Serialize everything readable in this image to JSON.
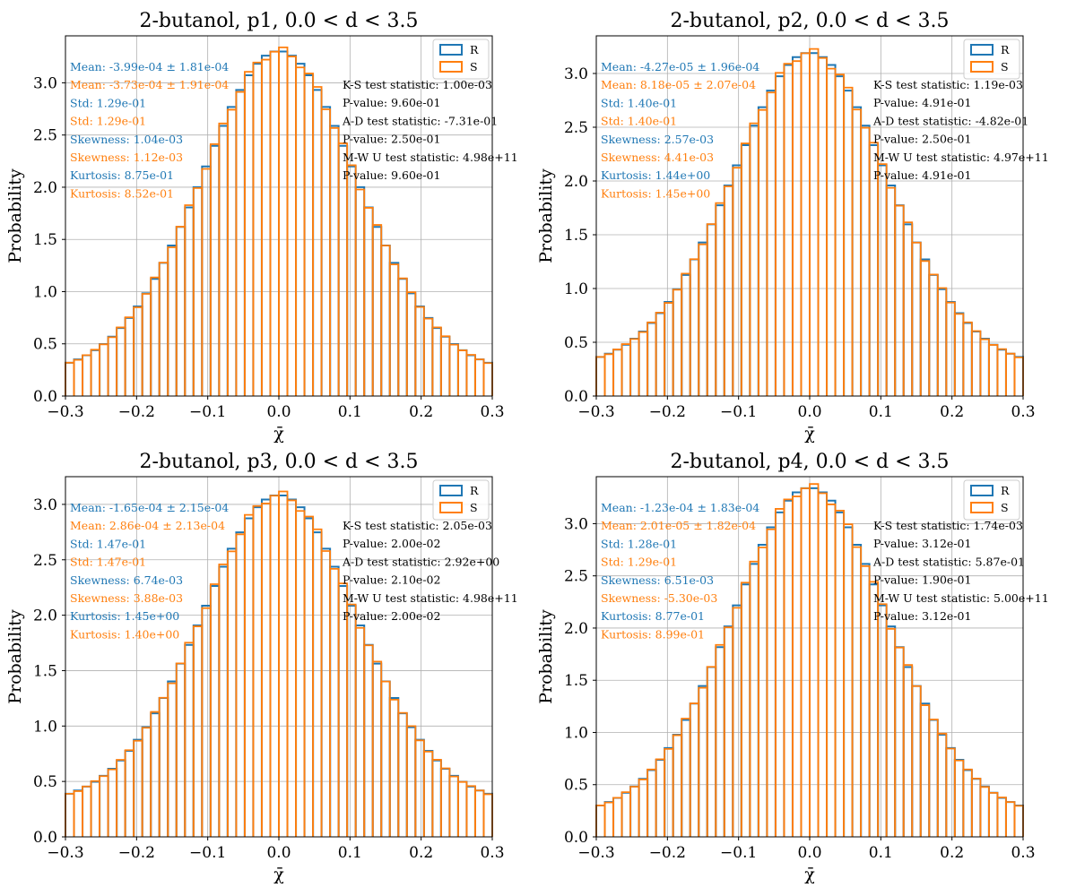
{
  "colors": {
    "R": "#1f77b4",
    "S": "#ff7f0e",
    "grid": "#b0b0b0",
    "text": "#000000"
  },
  "chart_data": [
    {
      "type": "histogram",
      "title": "2-butanol, p1, 0.0 < d < 3.5",
      "xlabel": "χ̄",
      "ylabel": "Probability",
      "xlim": [
        -0.3,
        0.3
      ],
      "ylim": [
        0.0,
        3.45
      ],
      "xticks": [
        "−0.3",
        "−0.2",
        "−0.1",
        "0.0",
        "0.1",
        "0.2",
        "0.3"
      ],
      "yticks": [
        "0.0",
        "0.5",
        "1.0",
        "1.5",
        "2.0",
        "2.5",
        "3.0"
      ],
      "grid": true,
      "legend_position": "top-right",
      "peak": 3.3,
      "tail": 0.22,
      "series": [
        {
          "name": "R",
          "color": "#1f77b4"
        },
        {
          "name": "S",
          "color": "#ff7f0e"
        }
      ],
      "stats_left": [
        {
          "text": "Mean: -3.99e-04 ± 1.81e-04",
          "series": "R"
        },
        {
          "text": "Mean: -3.73e-04 ± 1.91e-04",
          "series": "S"
        },
        {
          "text": "Std: 1.29e-01",
          "series": "R"
        },
        {
          "text": "Std: 1.29e-01",
          "series": "S"
        },
        {
          "text": "Skewness: 1.04e-03",
          "series": "R"
        },
        {
          "text": "Skewness: 1.12e-03",
          "series": "S"
        },
        {
          "text": "Kurtosis: 8.75e-01",
          "series": "R"
        },
        {
          "text": "Kurtosis: 8.52e-01",
          "series": "S"
        }
      ],
      "stats_right": [
        "K-S test statistic: 1.00e-03",
        "P-value: 9.60e-01",
        "A-D test statistic: -7.31e-01",
        "P-value: 2.50e-01",
        "M-W U test statistic: 4.98e+11",
        "P-value: 9.60e-01"
      ]
    },
    {
      "type": "histogram",
      "title": "2-butanol, p2, 0.0 < d < 3.5",
      "xlabel": "χ̄",
      "ylabel": "Probability",
      "xlim": [
        -0.3,
        0.3
      ],
      "ylim": [
        0.0,
        3.35
      ],
      "xticks": [
        "−0.3",
        "−0.2",
        "−0.1",
        "0.0",
        "0.1",
        "0.2",
        "0.3"
      ],
      "yticks": [
        "0.0",
        "0.5",
        "1.0",
        "1.5",
        "2.0",
        "2.5",
        "3.0"
      ],
      "grid": true,
      "legend_position": "top-right",
      "peak": 3.19,
      "tail": 0.27,
      "series": [
        {
          "name": "R",
          "color": "#1f77b4"
        },
        {
          "name": "S",
          "color": "#ff7f0e"
        }
      ],
      "stats_left": [
        {
          "text": "Mean: -4.27e-05 ± 1.96e-04",
          "series": "R"
        },
        {
          "text": "Mean: 8.18e-05 ± 2.07e-04",
          "series": "S"
        },
        {
          "text": "Std: 1.40e-01",
          "series": "R"
        },
        {
          "text": "Std: 1.40e-01",
          "series": "S"
        },
        {
          "text": "Skewness: 2.57e-03",
          "series": "R"
        },
        {
          "text": "Skewness: 4.41e-03",
          "series": "S"
        },
        {
          "text": "Kurtosis: 1.44e+00",
          "series": "R"
        },
        {
          "text": "Kurtosis: 1.45e+00",
          "series": "S"
        }
      ],
      "stats_right": [
        "K-S test statistic: 1.19e-03",
        "P-value: 4.91e-01",
        "A-D test statistic: -4.82e-01",
        "P-value: 2.50e-01",
        "M-W U test statistic: 4.97e+11",
        "P-value: 4.91e-01"
      ]
    },
    {
      "type": "histogram",
      "title": "2-butanol, p3, 0.0 < d < 3.5",
      "xlabel": "χ̄",
      "ylabel": "Probability",
      "xlim": [
        -0.3,
        0.3
      ],
      "ylim": [
        0.0,
        3.25
      ],
      "xticks": [
        "−0.3",
        "−0.2",
        "−0.1",
        "0.0",
        "0.1",
        "0.2",
        "0.3"
      ],
      "yticks": [
        "0.0",
        "0.5",
        "1.0",
        "1.5",
        "2.0",
        "2.5",
        "3.0"
      ],
      "grid": true,
      "legend_position": "top-right",
      "peak": 3.08,
      "tail": 0.3,
      "series": [
        {
          "name": "R",
          "color": "#1f77b4"
        },
        {
          "name": "S",
          "color": "#ff7f0e"
        }
      ],
      "stats_left": [
        {
          "text": "Mean: -1.65e-04 ± 2.15e-04",
          "series": "R"
        },
        {
          "text": "Mean: 2.86e-04 ± 2.13e-04",
          "series": "S"
        },
        {
          "text": "Std: 1.47e-01",
          "series": "R"
        },
        {
          "text": "Std: 1.47e-01",
          "series": "S"
        },
        {
          "text": "Skewness: 6.74e-03",
          "series": "R"
        },
        {
          "text": "Skewness: 3.88e-03",
          "series": "S"
        },
        {
          "text": "Kurtosis: 1.45e+00",
          "series": "R"
        },
        {
          "text": "Kurtosis: 1.40e+00",
          "series": "S"
        }
      ],
      "stats_right": [
        "K-S test statistic: 2.05e-03",
        "P-value: 2.00e-02",
        "A-D test statistic: 2.92e+00",
        "P-value: 2.10e-02",
        "M-W U test statistic: 4.98e+11",
        "P-value: 2.00e-02"
      ]
    },
    {
      "type": "histogram",
      "title": "2-butanol, p4, 0.0 < d < 3.5",
      "xlabel": "χ̄",
      "ylabel": "Probability",
      "xlim": [
        -0.3,
        0.3
      ],
      "ylim": [
        0.0,
        3.45
      ],
      "xticks": [
        "−0.3",
        "−0.2",
        "−0.1",
        "0.0",
        "0.1",
        "0.2",
        "0.3"
      ],
      "yticks": [
        "0.0",
        "0.5",
        "1.0",
        "1.5",
        "2.0",
        "2.5",
        "3.0"
      ],
      "grid": true,
      "legend_position": "top-right",
      "peak": 3.34,
      "tail": 0.2,
      "series": [
        {
          "name": "R",
          "color": "#1f77b4"
        },
        {
          "name": "S",
          "color": "#ff7f0e"
        }
      ],
      "stats_left": [
        {
          "text": "Mean: -1.23e-04 ± 1.83e-04",
          "series": "R"
        },
        {
          "text": "Mean: 2.01e-05 ± 1.82e-04",
          "series": "S"
        },
        {
          "text": "Std: 1.28e-01",
          "series": "R"
        },
        {
          "text": "Std: 1.29e-01",
          "series": "S"
        },
        {
          "text": "Skewness: 6.51e-03",
          "series": "R"
        },
        {
          "text": "Skewness: -5.30e-03",
          "series": "S"
        },
        {
          "text": "Kurtosis: 8.77e-01",
          "series": "R"
        },
        {
          "text": "Kurtosis: 8.99e-01",
          "series": "S"
        }
      ],
      "stats_right": [
        "K-S test statistic: 1.74e-03",
        "P-value: 3.12e-01",
        "A-D test statistic: 5.87e-01",
        "P-value: 1.90e-01",
        "M-W U test statistic: 5.00e+11",
        "P-value: 3.12e-01"
      ]
    }
  ]
}
